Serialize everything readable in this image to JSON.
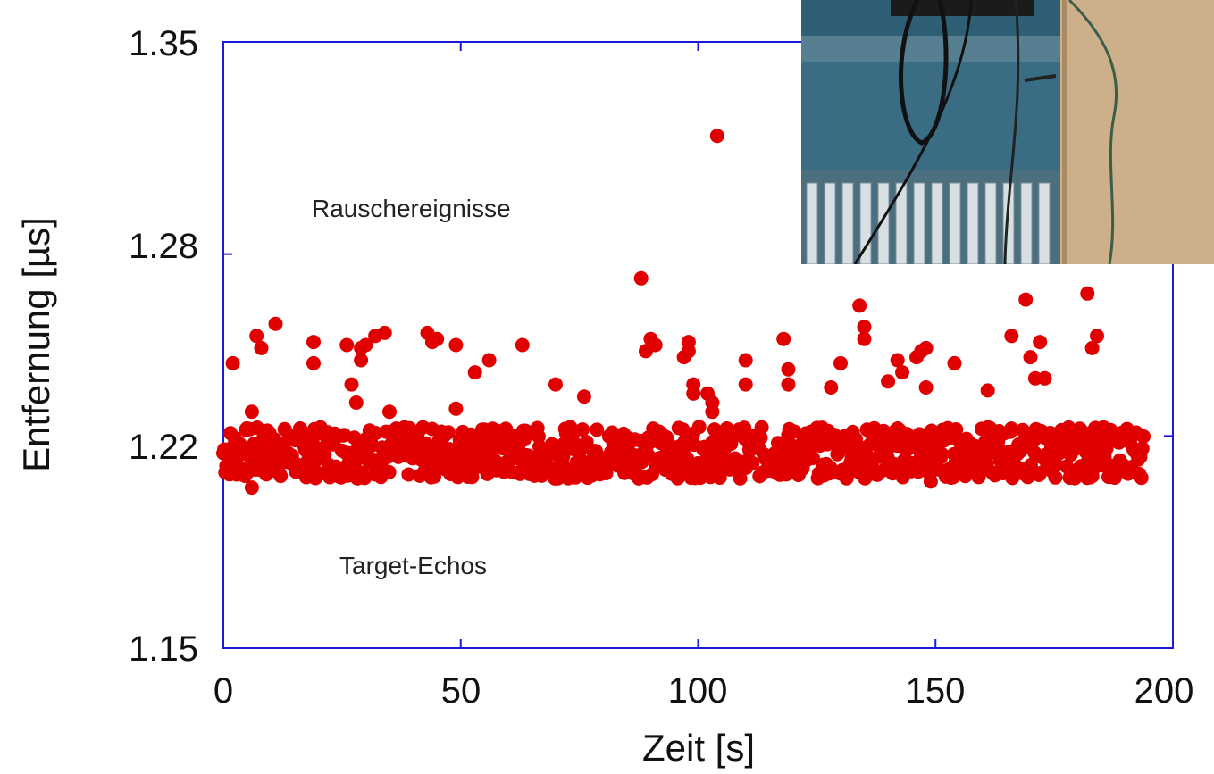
{
  "chart_data": {
    "type": "scatter",
    "title": "",
    "xlabel": "Zeit [s]",
    "ylabel": "Entfernung [µs]",
    "xlim": [
      0,
      200
    ],
    "ylim": [
      1.15,
      1.35
    ],
    "x_ticks": [
      "0",
      "50",
      "100",
      "150",
      "200"
    ],
    "y_ticks": [
      "1.15",
      "1.22",
      "1.28",
      "1.35"
    ],
    "grid": false,
    "marker_color": "#e00000",
    "axis_color": "#1a1adc",
    "annotations": [
      "Rauschereignisse",
      "Target-Echos"
    ],
    "series": [
      {
        "x": [
          2,
          6,
          7,
          8,
          11,
          19,
          19,
          26,
          27,
          28,
          29,
          29,
          30,
          32,
          34,
          35,
          43,
          44,
          45,
          49,
          49,
          53,
          56,
          63,
          70,
          76,
          88,
          89,
          90,
          91,
          97,
          98,
          98,
          99,
          99,
          102,
          103,
          103,
          104,
          110,
          110,
          118,
          119,
          119,
          128,
          130,
          134,
          135,
          135,
          140,
          142,
          143,
          146,
          147,
          148,
          148,
          154,
          161,
          166,
          169,
          170,
          171,
          172,
          173,
          182,
          183,
          184
        ],
        "y": [
          1.244,
          1.228,
          1.253,
          1.249,
          1.257,
          1.251,
          1.244,
          1.25,
          1.237,
          1.231,
          1.245,
          1.249,
          1.25,
          1.253,
          1.254,
          1.228,
          1.254,
          1.251,
          1.252,
          1.229,
          1.25,
          1.241,
          1.245,
          1.25,
          1.237,
          1.233,
          1.272,
          1.248,
          1.252,
          1.25,
          1.246,
          1.251,
          1.248,
          1.237,
          1.234,
          1.234,
          1.228,
          1.231,
          1.319,
          1.245,
          1.237,
          1.252,
          1.242,
          1.237,
          1.236,
          1.244,
          1.263,
          1.256,
          1.252,
          1.238,
          1.245,
          1.241,
          1.246,
          1.248,
          1.249,
          1.236,
          1.244,
          1.235,
          1.253,
          1.265,
          1.246,
          1.239,
          1.251,
          1.239,
          1.267,
          1.249,
          1.253
        ]
      }
    ]
  }
}
